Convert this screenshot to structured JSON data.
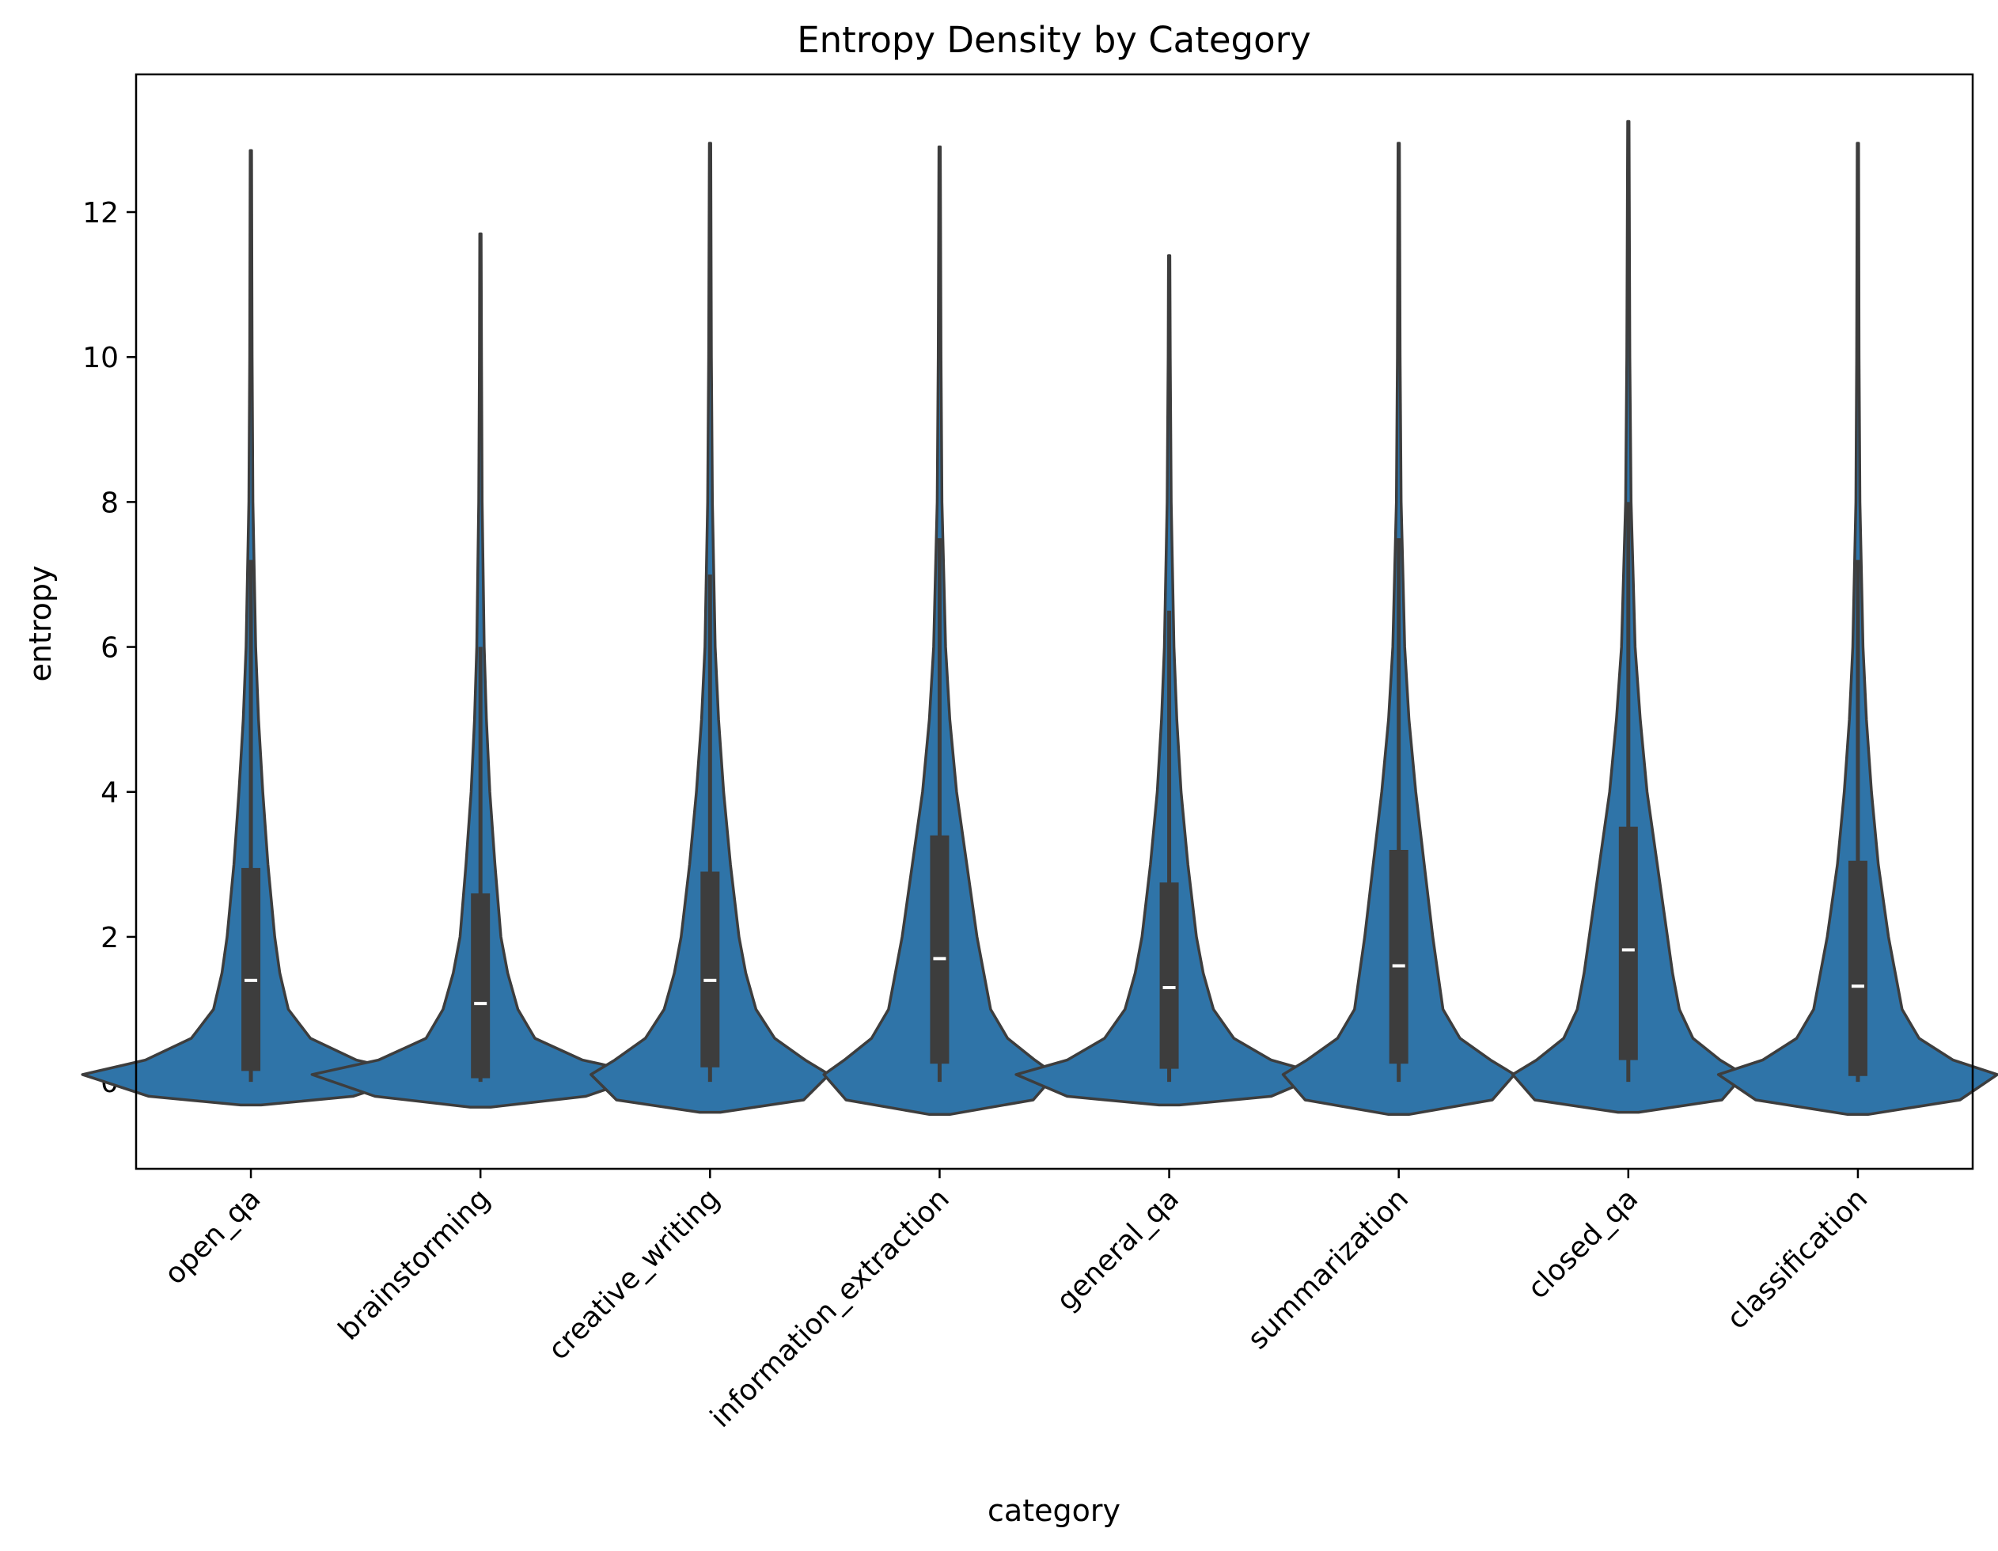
{
  "chart_data": {
    "type": "violin",
    "title": "Entropy Density by Category",
    "xlabel": "category",
    "ylabel": "entropy",
    "ylim": [
      -1.2,
      13.9
    ],
    "yticks": [
      0,
      2,
      4,
      6,
      8,
      10,
      12
    ],
    "colors": {
      "fill": "#2f74a8",
      "stroke": "#3d3d3d",
      "box": "#3d3d3d",
      "median": "#ffffff"
    },
    "categories": [
      "open_qa",
      "brainstorming",
      "creative_writing",
      "information_extraction",
      "general_qa",
      "summarization",
      "closed_qa",
      "classification"
    ],
    "series": [
      {
        "category": "open_qa",
        "min": -0.32,
        "max": 12.85,
        "q1": 0.15,
        "median": 1.4,
        "q3": 2.95,
        "whisker_low": 0.0,
        "whisker_high": 7.2,
        "profile": [
          [
            -0.32,
            0.06
          ],
          [
            -0.2,
            0.6
          ],
          [
            0.1,
            0.99
          ],
          [
            0.3,
            0.62
          ],
          [
            0.6,
            0.35
          ],
          [
            1.0,
            0.22
          ],
          [
            1.5,
            0.17
          ],
          [
            2.0,
            0.14
          ],
          [
            3.0,
            0.1
          ],
          [
            4.0,
            0.07
          ],
          [
            5.0,
            0.045
          ],
          [
            6.0,
            0.028
          ],
          [
            8.0,
            0.012
          ],
          [
            10.0,
            0.007
          ],
          [
            12.85,
            0.004
          ]
        ]
      },
      {
        "category": "brainstorming",
        "min": -0.35,
        "max": 11.7,
        "q1": 0.05,
        "median": 1.08,
        "q3": 2.6,
        "whisker_low": 0.0,
        "whisker_high": 6.0,
        "profile": [
          [
            -0.35,
            0.06
          ],
          [
            -0.2,
            0.62
          ],
          [
            0.1,
            0.99
          ],
          [
            0.3,
            0.6
          ],
          [
            0.6,
            0.32
          ],
          [
            1.0,
            0.22
          ],
          [
            1.5,
            0.16
          ],
          [
            2.0,
            0.12
          ],
          [
            3.0,
            0.085
          ],
          [
            4.0,
            0.055
          ],
          [
            5.0,
            0.035
          ],
          [
            6.0,
            0.022
          ],
          [
            8.0,
            0.01
          ],
          [
            10.0,
            0.006
          ],
          [
            11.7,
            0.004
          ]
        ]
      },
      {
        "category": "creative_writing",
        "min": -0.42,
        "max": 12.95,
        "q1": 0.2,
        "median": 1.4,
        "q3": 2.9,
        "whisker_low": 0.0,
        "whisker_high": 7.0,
        "profile": [
          [
            -0.42,
            0.06
          ],
          [
            -0.25,
            0.55
          ],
          [
            0.1,
            0.7
          ],
          [
            0.3,
            0.56
          ],
          [
            0.6,
            0.38
          ],
          [
            1.0,
            0.27
          ],
          [
            1.5,
            0.21
          ],
          [
            2.0,
            0.17
          ],
          [
            3.0,
            0.12
          ],
          [
            4.0,
            0.08
          ],
          [
            5.0,
            0.05
          ],
          [
            6.0,
            0.03
          ],
          [
            8.0,
            0.014
          ],
          [
            10.0,
            0.008
          ],
          [
            12.95,
            0.004
          ]
        ]
      },
      {
        "category": "information_extraction",
        "min": -0.45,
        "max": 12.9,
        "q1": 0.25,
        "median": 1.7,
        "q3": 3.4,
        "whisker_low": 0.0,
        "whisker_high": 7.5,
        "profile": [
          [
            -0.45,
            0.06
          ],
          [
            -0.25,
            0.55
          ],
          [
            0.1,
            0.68
          ],
          [
            0.3,
            0.56
          ],
          [
            0.6,
            0.4
          ],
          [
            1.0,
            0.3
          ],
          [
            1.5,
            0.26
          ],
          [
            2.0,
            0.22
          ],
          [
            3.0,
            0.16
          ],
          [
            4.0,
            0.1
          ],
          [
            5.0,
            0.06
          ],
          [
            6.0,
            0.035
          ],
          [
            8.0,
            0.014
          ],
          [
            10.0,
            0.008
          ],
          [
            12.9,
            0.004
          ]
        ]
      },
      {
        "category": "general_qa",
        "min": -0.32,
        "max": 11.4,
        "q1": 0.18,
        "median": 1.3,
        "q3": 2.75,
        "whisker_low": 0.0,
        "whisker_high": 6.5,
        "profile": [
          [
            -0.32,
            0.06
          ],
          [
            -0.2,
            0.6
          ],
          [
            0.1,
            0.9
          ],
          [
            0.3,
            0.6
          ],
          [
            0.6,
            0.38
          ],
          [
            1.0,
            0.26
          ],
          [
            1.5,
            0.2
          ],
          [
            2.0,
            0.16
          ],
          [
            3.0,
            0.11
          ],
          [
            4.0,
            0.07
          ],
          [
            5.0,
            0.045
          ],
          [
            6.0,
            0.028
          ],
          [
            8.0,
            0.012
          ],
          [
            10.0,
            0.006
          ],
          [
            11.4,
            0.004
          ]
        ]
      },
      {
        "category": "summarization",
        "min": -0.45,
        "max": 12.95,
        "q1": 0.25,
        "median": 1.6,
        "q3": 3.2,
        "whisker_low": 0.0,
        "whisker_high": 7.5,
        "profile": [
          [
            -0.45,
            0.06
          ],
          [
            -0.25,
            0.55
          ],
          [
            0.1,
            0.68
          ],
          [
            0.3,
            0.54
          ],
          [
            0.6,
            0.36
          ],
          [
            1.0,
            0.26
          ],
          [
            1.5,
            0.23
          ],
          [
            2.0,
            0.2
          ],
          [
            3.0,
            0.15
          ],
          [
            4.0,
            0.1
          ],
          [
            5.0,
            0.06
          ],
          [
            6.0,
            0.035
          ],
          [
            8.0,
            0.014
          ],
          [
            10.0,
            0.008
          ],
          [
            12.95,
            0.004
          ]
        ]
      },
      {
        "category": "closed_qa",
        "min": -0.42,
        "max": 13.25,
        "q1": 0.3,
        "median": 1.82,
        "q3": 3.52,
        "whisker_low": 0.0,
        "whisker_high": 8.0,
        "profile": [
          [
            -0.42,
            0.06
          ],
          [
            -0.25,
            0.55
          ],
          [
            0.1,
            0.68
          ],
          [
            0.3,
            0.54
          ],
          [
            0.6,
            0.38
          ],
          [
            1.0,
            0.3
          ],
          [
            1.5,
            0.26
          ],
          [
            2.0,
            0.23
          ],
          [
            3.0,
            0.17
          ],
          [
            4.0,
            0.11
          ],
          [
            5.0,
            0.07
          ],
          [
            6.0,
            0.04
          ],
          [
            8.0,
            0.016
          ],
          [
            10.0,
            0.009
          ],
          [
            13.25,
            0.004
          ]
        ]
      },
      {
        "category": "classification",
        "min": -0.45,
        "max": 12.95,
        "q1": 0.08,
        "median": 1.32,
        "q3": 3.05,
        "whisker_low": 0.0,
        "whisker_high": 7.2,
        "profile": [
          [
            -0.45,
            0.06
          ],
          [
            -0.25,
            0.6
          ],
          [
            0.1,
            0.82
          ],
          [
            0.3,
            0.56
          ],
          [
            0.6,
            0.36
          ],
          [
            1.0,
            0.26
          ],
          [
            1.5,
            0.22
          ],
          [
            2.0,
            0.18
          ],
          [
            3.0,
            0.12
          ],
          [
            4.0,
            0.08
          ],
          [
            5.0,
            0.05
          ],
          [
            6.0,
            0.03
          ],
          [
            8.0,
            0.012
          ],
          [
            10.0,
            0.007
          ],
          [
            12.95,
            0.004
          ]
        ]
      }
    ]
  }
}
